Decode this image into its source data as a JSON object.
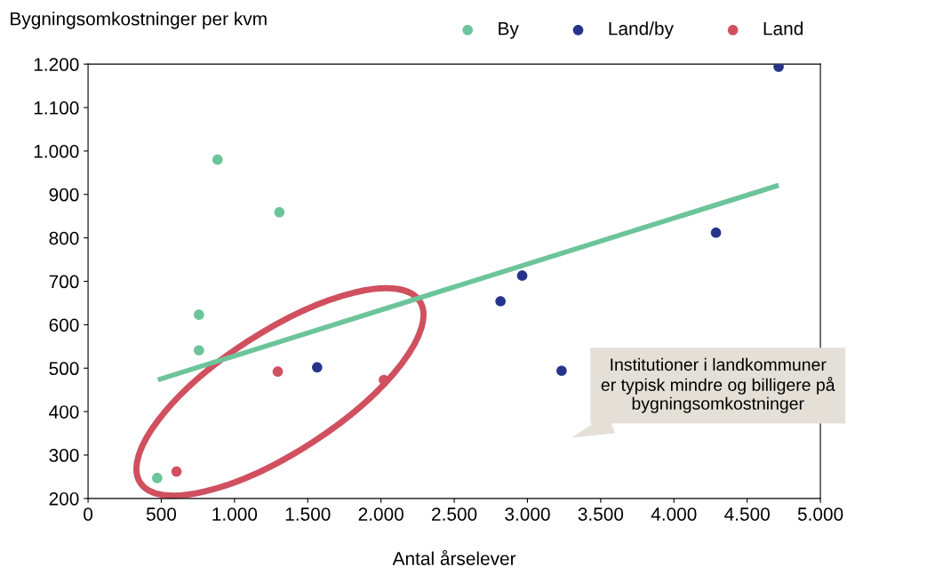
{
  "chart_data": {
    "type": "scatter",
    "ylabel": "Bygningsomkostninger per kvm",
    "xlabel": "Antal årselever",
    "series": [
      {
        "name": "By",
        "color": "#6cc49a",
        "x": [
          472,
          757,
          757,
          884,
          1306
        ],
        "values": [
          247,
          541,
          623,
          980,
          859
        ]
      },
      {
        "name": "Land/by",
        "color": "#27348b",
        "x": [
          1564,
          2816,
          2964,
          3233,
          4287,
          4715
        ],
        "values": [
          502,
          654,
          713,
          494,
          812,
          1194
        ]
      },
      {
        "name": "Land",
        "color": "#d0505f",
        "x": [
          604,
          1295,
          2020
        ],
        "values": [
          262,
          492,
          473
        ]
      },
      {
        "type": "line",
        "marker": "none",
        "color": "#6cc49a",
        "x": [
          477,
          4715
        ],
        "values": [
          473,
          921
        ]
      }
    ],
    "xlim": [
      0,
      5000
    ],
    "ylim": [
      200,
      1200
    ],
    "xticks": [
      0,
      {
        "value": 500,
        "label": "500"
      },
      {
        "value": 1000,
        "label": "1.000"
      },
      {
        "value": 1500,
        "label": "1.500"
      },
      {
        "value": 2000,
        "label": "2.000"
      },
      {
        "value": 2500,
        "label": "2.500"
      },
      {
        "value": 3000,
        "label": "3.000"
      },
      {
        "value": 3500,
        "label": "3.500"
      },
      {
        "value": 4000,
        "label": "4.000"
      },
      {
        "value": 4500,
        "label": "4.500"
      },
      {
        "value": 5000,
        "label": "5.000"
      }
    ],
    "yticks": [
      200,
      300,
      400,
      500,
      600,
      700,
      800,
      900,
      {
        "value": 1000,
        "label": "1.000"
      },
      {
        "value": 1100,
        "label": "1.100"
      },
      {
        "value": 1200,
        "label": "1.200"
      }
    ],
    "annotations": [
      "Institutioner i landkommuner er typisk mindre og billigere på bygningsomkostninger"
    ],
    "legend": "top right",
    "marker": "circle",
    "grid": false
  }
}
